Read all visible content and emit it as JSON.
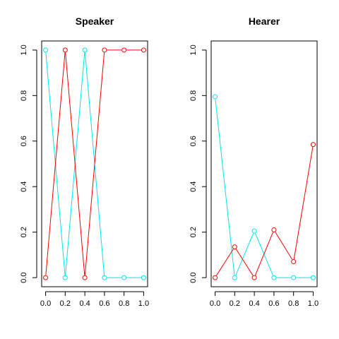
{
  "chart_data": [
    {
      "type": "line",
      "title": "Speaker",
      "xlabel": "",
      "ylabel": "",
      "x": [
        0.0,
        0.2,
        0.4,
        0.6,
        0.8,
        1.0
      ],
      "xticks": [
        "0.0",
        "0.2",
        "0.4",
        "0.6",
        "0.8",
        "1.0"
      ],
      "yticks": [
        "0.0",
        "0.2",
        "0.4",
        "0.6",
        "0.8",
        "1.0"
      ],
      "xlim": [
        0,
        1
      ],
      "ylim": [
        0,
        1
      ],
      "grid": false,
      "marker": "open-circle",
      "series": [
        {
          "color": "#00e5ee",
          "values": [
            1.0,
            0.0,
            1.0,
            0.0,
            0.0,
            0.0
          ]
        },
        {
          "color": "#ff0000",
          "values": [
            0.0,
            1.0,
            0.0,
            1.0,
            1.0,
            1.0
          ]
        }
      ]
    },
    {
      "type": "line",
      "title": "Hearer",
      "xlabel": "",
      "ylabel": "",
      "x": [
        0.0,
        0.2,
        0.4,
        0.6,
        0.8,
        1.0
      ],
      "xticks": [
        "0.0",
        "0.2",
        "0.4",
        "0.6",
        "0.8",
        "1.0"
      ],
      "yticks": [
        "0.0",
        "0.2",
        "0.4",
        "0.6",
        "0.8",
        "1.0"
      ],
      "xlim": [
        0,
        1
      ],
      "ylim": [
        0,
        1
      ],
      "grid": false,
      "marker": "open-circle",
      "series": [
        {
          "color": "#00e5ee",
          "values": [
            0.795,
            0.0,
            0.205,
            0.0,
            0.0,
            0.0
          ]
        },
        {
          "color": "#ff0000",
          "values": [
            0.0,
            0.135,
            0.0,
            0.21,
            0.07,
            0.585
          ]
        }
      ]
    }
  ]
}
